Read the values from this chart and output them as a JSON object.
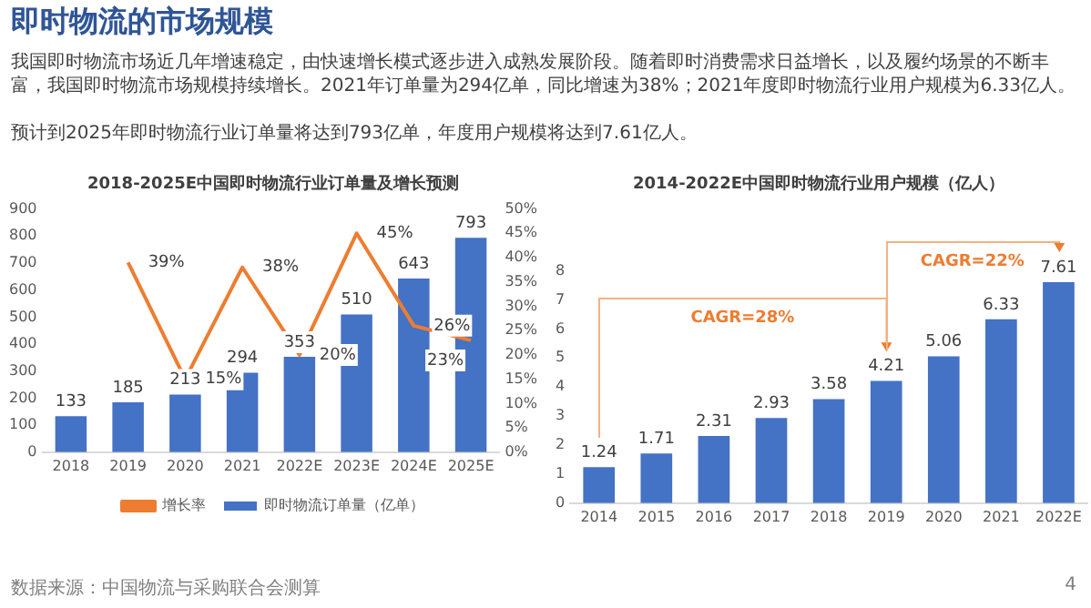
{
  "chart_data": [
    {
      "type": "other",
      "title": "即时物流的市场规模",
      "annotations": [
        "我国即时物流市场近几年增速稳定，由快速增长模式逐步进入成熟发展阶段。随着即时消费需求日益增长，以及履约场景的不断丰富，我国即时物流市场规模持续增长。2021年订单量为294亿单，同比增速为38%；2021年度即时物流行业用户规模为6.33亿人。",
        "预计到2025年即时物流行业订单量将达到793亿单，年度用户规模将达到7.61亿人。",
        "数据来源：中国物流与采购联合会测算",
        "4"
      ]
    },
    {
      "type": "bar",
      "title": "2018-2025E中国即时物流行业订单量及增长预测",
      "categories": [
        "2018",
        "2019",
        "2020",
        "2021",
        "2022E",
        "2023E",
        "2024E",
        "2025E"
      ],
      "series": [
        {
          "name": "即时物流订单量（亿单）",
          "color": "#4472c4",
          "values": [
            133,
            185,
            213,
            294,
            353,
            510,
            643,
            793
          ]
        },
        {
          "name": "增长率",
          "type": "line",
          "axis": "y2",
          "color": "#ed7d31",
          "values": [
            null,
            39,
            15,
            38,
            20,
            45,
            26,
            23
          ],
          "value_labels": [
            null,
            "39%",
            "15%",
            "38%",
            "20%",
            "45%",
            "26%",
            "23%"
          ]
        }
      ],
      "ylim": [
        0,
        900
      ],
      "yticks": [
        0,
        100,
        200,
        300,
        400,
        500,
        600,
        700,
        800,
        900
      ],
      "y2lim": [
        0,
        50
      ],
      "y2ticks": [
        {
          "value": 0,
          "label": "0%"
        },
        {
          "value": 5,
          "label": "5%"
        },
        {
          "value": 10,
          "label": "10%"
        },
        {
          "value": 15,
          "label": "15%"
        },
        {
          "value": 20,
          "label": "20%"
        },
        {
          "value": 25,
          "label": "25%"
        },
        {
          "value": 30,
          "label": "30%"
        },
        {
          "value": 35,
          "label": "35%"
        },
        {
          "value": 40,
          "label": "40%"
        },
        {
          "value": 45,
          "label": "45%"
        },
        {
          "value": 50,
          "label": "50%"
        }
      ],
      "data_labels": true,
      "legend": "bottom",
      "grid": false,
      "marker": "none"
    },
    {
      "type": "bar",
      "title": "2014-2022E中国即时物流行业用户规模（亿人）",
      "categories": [
        "2014",
        "2015",
        "2016",
        "2017",
        "2018",
        "2019",
        "2020",
        "2021",
        "2022E"
      ],
      "series": [
        {
          "color": "#4472c4",
          "values": [
            1.24,
            1.71,
            2.31,
            2.93,
            3.58,
            4.21,
            5.06,
            6.33,
            7.61
          ]
        }
      ],
      "ylim": [
        0,
        8
      ],
      "yticks": [
        0,
        1,
        2,
        3,
        4,
        5,
        6,
        7,
        8
      ],
      "data_labels": true,
      "legend": false,
      "grid": false,
      "annotations": [
        "CAGR=28%",
        "CAGR=22%"
      ]
    }
  ]
}
